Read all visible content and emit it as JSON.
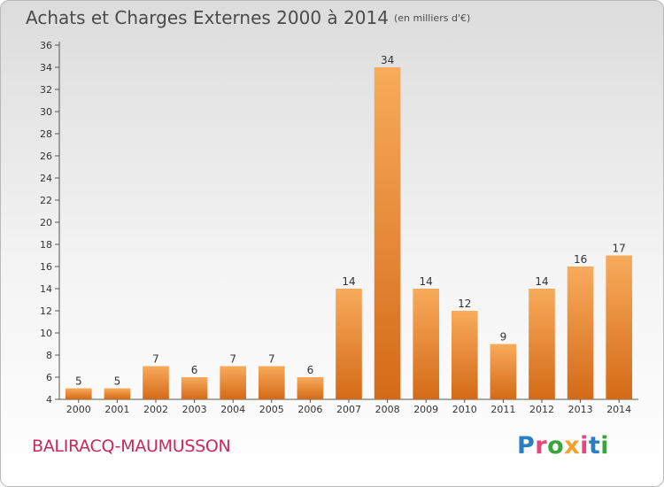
{
  "title": {
    "main": "Achats et Charges Externes 2000 à 2014",
    "unit": "(en milliers d'€)"
  },
  "commune": "BALIRACQ-MAUMUSSON",
  "brand": {
    "text": "Proxiti",
    "letter_colors": [
      "#2a7fc2",
      "#e8457a",
      "#3aa53a",
      "#f2a12b",
      "#e8457a",
      "#2a7fc2",
      "#3aa53a"
    ]
  },
  "chart_data": {
    "type": "bar",
    "title": "Achats et Charges Externes 2000 à 2014",
    "subtitle": "(en milliers d'€)",
    "xlabel": "",
    "ylabel": "",
    "categories": [
      "2000",
      "2001",
      "2002",
      "2003",
      "2004",
      "2005",
      "2006",
      "2007",
      "2008",
      "2009",
      "2010",
      "2011",
      "2012",
      "2013",
      "2014"
    ],
    "values": [
      5,
      5,
      7,
      6,
      7,
      7,
      6,
      14,
      34,
      14,
      12,
      9,
      14,
      16,
      17
    ],
    "ylim": [
      4,
      36
    ],
    "ytick_step": 2,
    "grid": false,
    "bar_color_light": "#f8ab5c",
    "bar_color_dark": "#d46a17"
  }
}
